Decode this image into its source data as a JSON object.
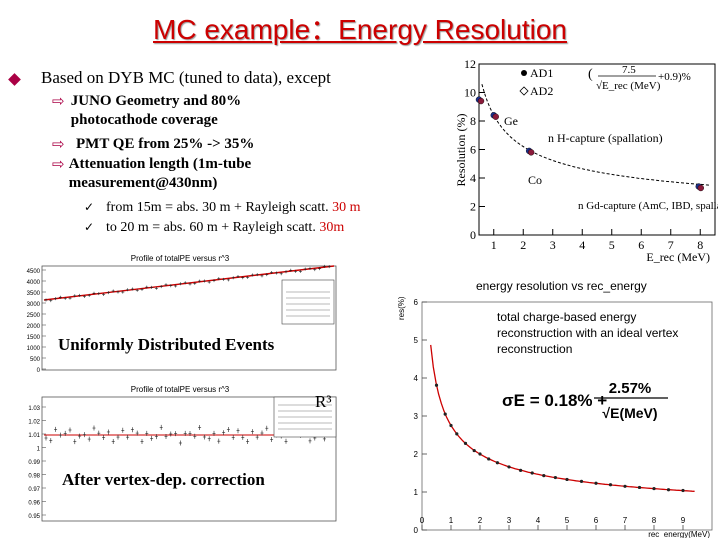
{
  "title": "MC example：Energy Resolution",
  "bullet": "Based on DYB MC (tuned to data), except",
  "subitems": [
    "JUNO Geometry and 80% photocathode coverage",
    "PMT QE from 25% -> 35%",
    "Attenuation length  (1m-tube measurement@430nm)"
  ],
  "checks": [
    {
      "prefix": "from 15m = abs. 30 m + Rayleigh scatt. ",
      "value": "30 m"
    },
    {
      "prefix": "to 20 m = abs. 60 m + Rayleigh scatt. ",
      "value": "30m"
    }
  ],
  "left_plots": {
    "top_title": "Profile of totalPE versus r^3",
    "top_caption": "Uniformly Distributed Events",
    "bottom_title": "Profile of totalPE versus r^3",
    "bottom_caption": "After vertex-dep. correction",
    "r3_label": "R³"
  },
  "chart_data": [
    {
      "type": "scatter",
      "ylabel": "Resolution (%)",
      "xlabel": "E_rec (MeV)",
      "xlim": [
        0.5,
        8.5
      ],
      "ylim": [
        0,
        12
      ],
      "xticks": [
        "1",
        "2",
        "3",
        "4",
        "5",
        "6",
        "7",
        "8"
      ],
      "yticks": [
        "0",
        "2",
        "4",
        "6",
        "8",
        "10",
        "12"
      ],
      "legend": [
        "AD1",
        "AD2"
      ],
      "formula": {
        "numerator": "7.5",
        "denominator": "√E_rec (MeV)",
        "constant": "+0.9)%"
      },
      "annotations": [
        "Ge",
        "n H-capture (spallation)",
        "Co",
        "n Gd-capture (AmC, IBD, spallation)"
      ],
      "series": [
        {
          "name": "AD1",
          "x": [
            0.5,
            1.0,
            2.2,
            7.95
          ],
          "y": [
            9.5,
            8.4,
            5.9,
            3.4
          ]
        },
        {
          "name": "AD2",
          "x": [
            0.5,
            1.0,
            2.2,
            7.95
          ],
          "y": [
            9.4,
            8.3,
            5.8,
            3.3
          ]
        }
      ],
      "fit": {
        "a": 7.5,
        "b": 0.9
      }
    },
    {
      "type": "scatter",
      "title": "energy resolution vs rec_energy",
      "ylabel": "res(%)",
      "xlabel": "rec_energy(MeV)",
      "xlim": [
        0,
        10
      ],
      "ylim": [
        0,
        6
      ],
      "xticks": [
        "0",
        "1",
        "2",
        "3",
        "4",
        "5",
        "6",
        "7",
        "8",
        "9"
      ],
      "yticks": [
        "0",
        "1",
        "2",
        "3",
        "4",
        "5",
        "6"
      ],
      "annotation": "total charge-based energy reconstruction with an ideal vertex reconstruction",
      "formula": {
        "lhs": "σE = 0.18% +",
        "numerator": "2.57%",
        "denominator": "√E(MeV)"
      },
      "fit": {
        "a": 2.57,
        "b": 0.18
      },
      "points": {
        "x": [
          0.5,
          0.8,
          1.0,
          1.2,
          1.5,
          1.8,
          2.0,
          2.3,
          2.6,
          3.0,
          3.4,
          3.8,
          4.2,
          4.6,
          5.0,
          5.5,
          6.0,
          6.5,
          7.0,
          7.5,
          8.0,
          8.5,
          9.0
        ],
        "y": [
          3.81,
          3.05,
          2.75,
          2.53,
          2.28,
          2.09,
          2.0,
          1.87,
          1.77,
          1.66,
          1.57,
          1.5,
          1.43,
          1.38,
          1.33,
          1.28,
          1.23,
          1.19,
          1.15,
          1.12,
          1.09,
          1.06,
          1.04
        ]
      }
    }
  ]
}
